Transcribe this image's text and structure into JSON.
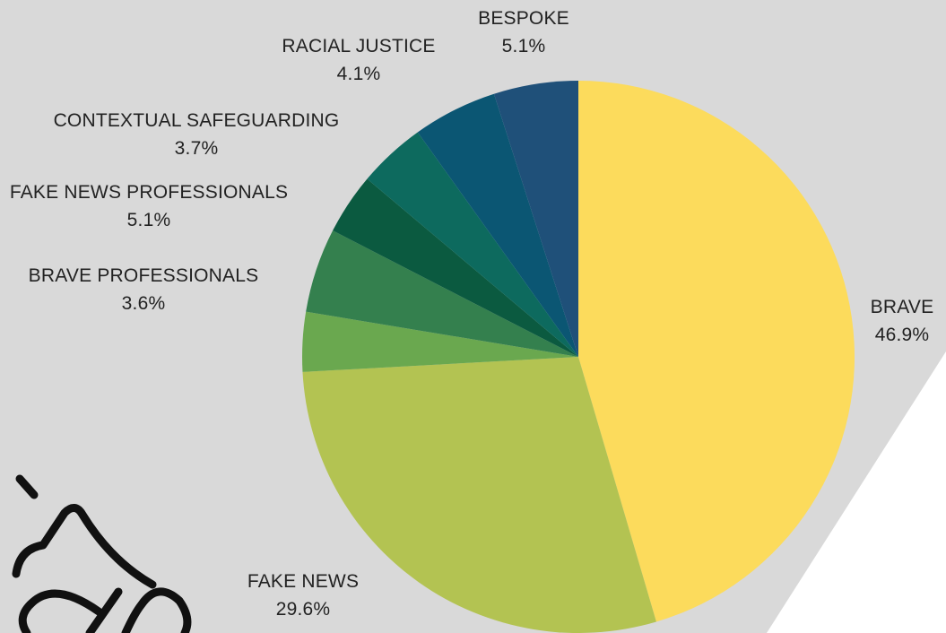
{
  "chart_data": {
    "type": "pie",
    "title": "",
    "start": "top, clockwise",
    "slices": [
      {
        "label": "BRAVE",
        "value": 46.9,
        "display": "46.9%",
        "color": "#fcdb5c"
      },
      {
        "label": "FAKE NEWS",
        "value": 29.6,
        "display": "29.6%",
        "color": "#b3c352"
      },
      {
        "label": "BRAVE PROFESSIONALS",
        "value": 3.6,
        "display": "3.6%",
        "color": "#6aa84f"
      },
      {
        "label": "FAKE NEWS PROFESSIONALS",
        "value": 5.1,
        "display": "5.1%",
        "color": "#34804e"
      },
      {
        "label": "CONTEXTUAL SAFEGUARDING",
        "value": 3.7,
        "display": "3.7%",
        "color": "#0b5a40"
      },
      {
        "label": "RACIAL JUSTICE",
        "value": 4.1,
        "display": "4.1%",
        "color": "#0d6a5e"
      },
      {
        "label": "BESPOKE",
        "value": 5.1,
        "display": "5.1%",
        "color": "#0b5673"
      },
      {
        "label": "",
        "value": 5.1,
        "display": "",
        "color": "#1f5079"
      }
    ]
  },
  "background": {
    "panel_color": "#d9d9d9"
  },
  "decoration": {
    "icon": "megaphone-icon"
  }
}
